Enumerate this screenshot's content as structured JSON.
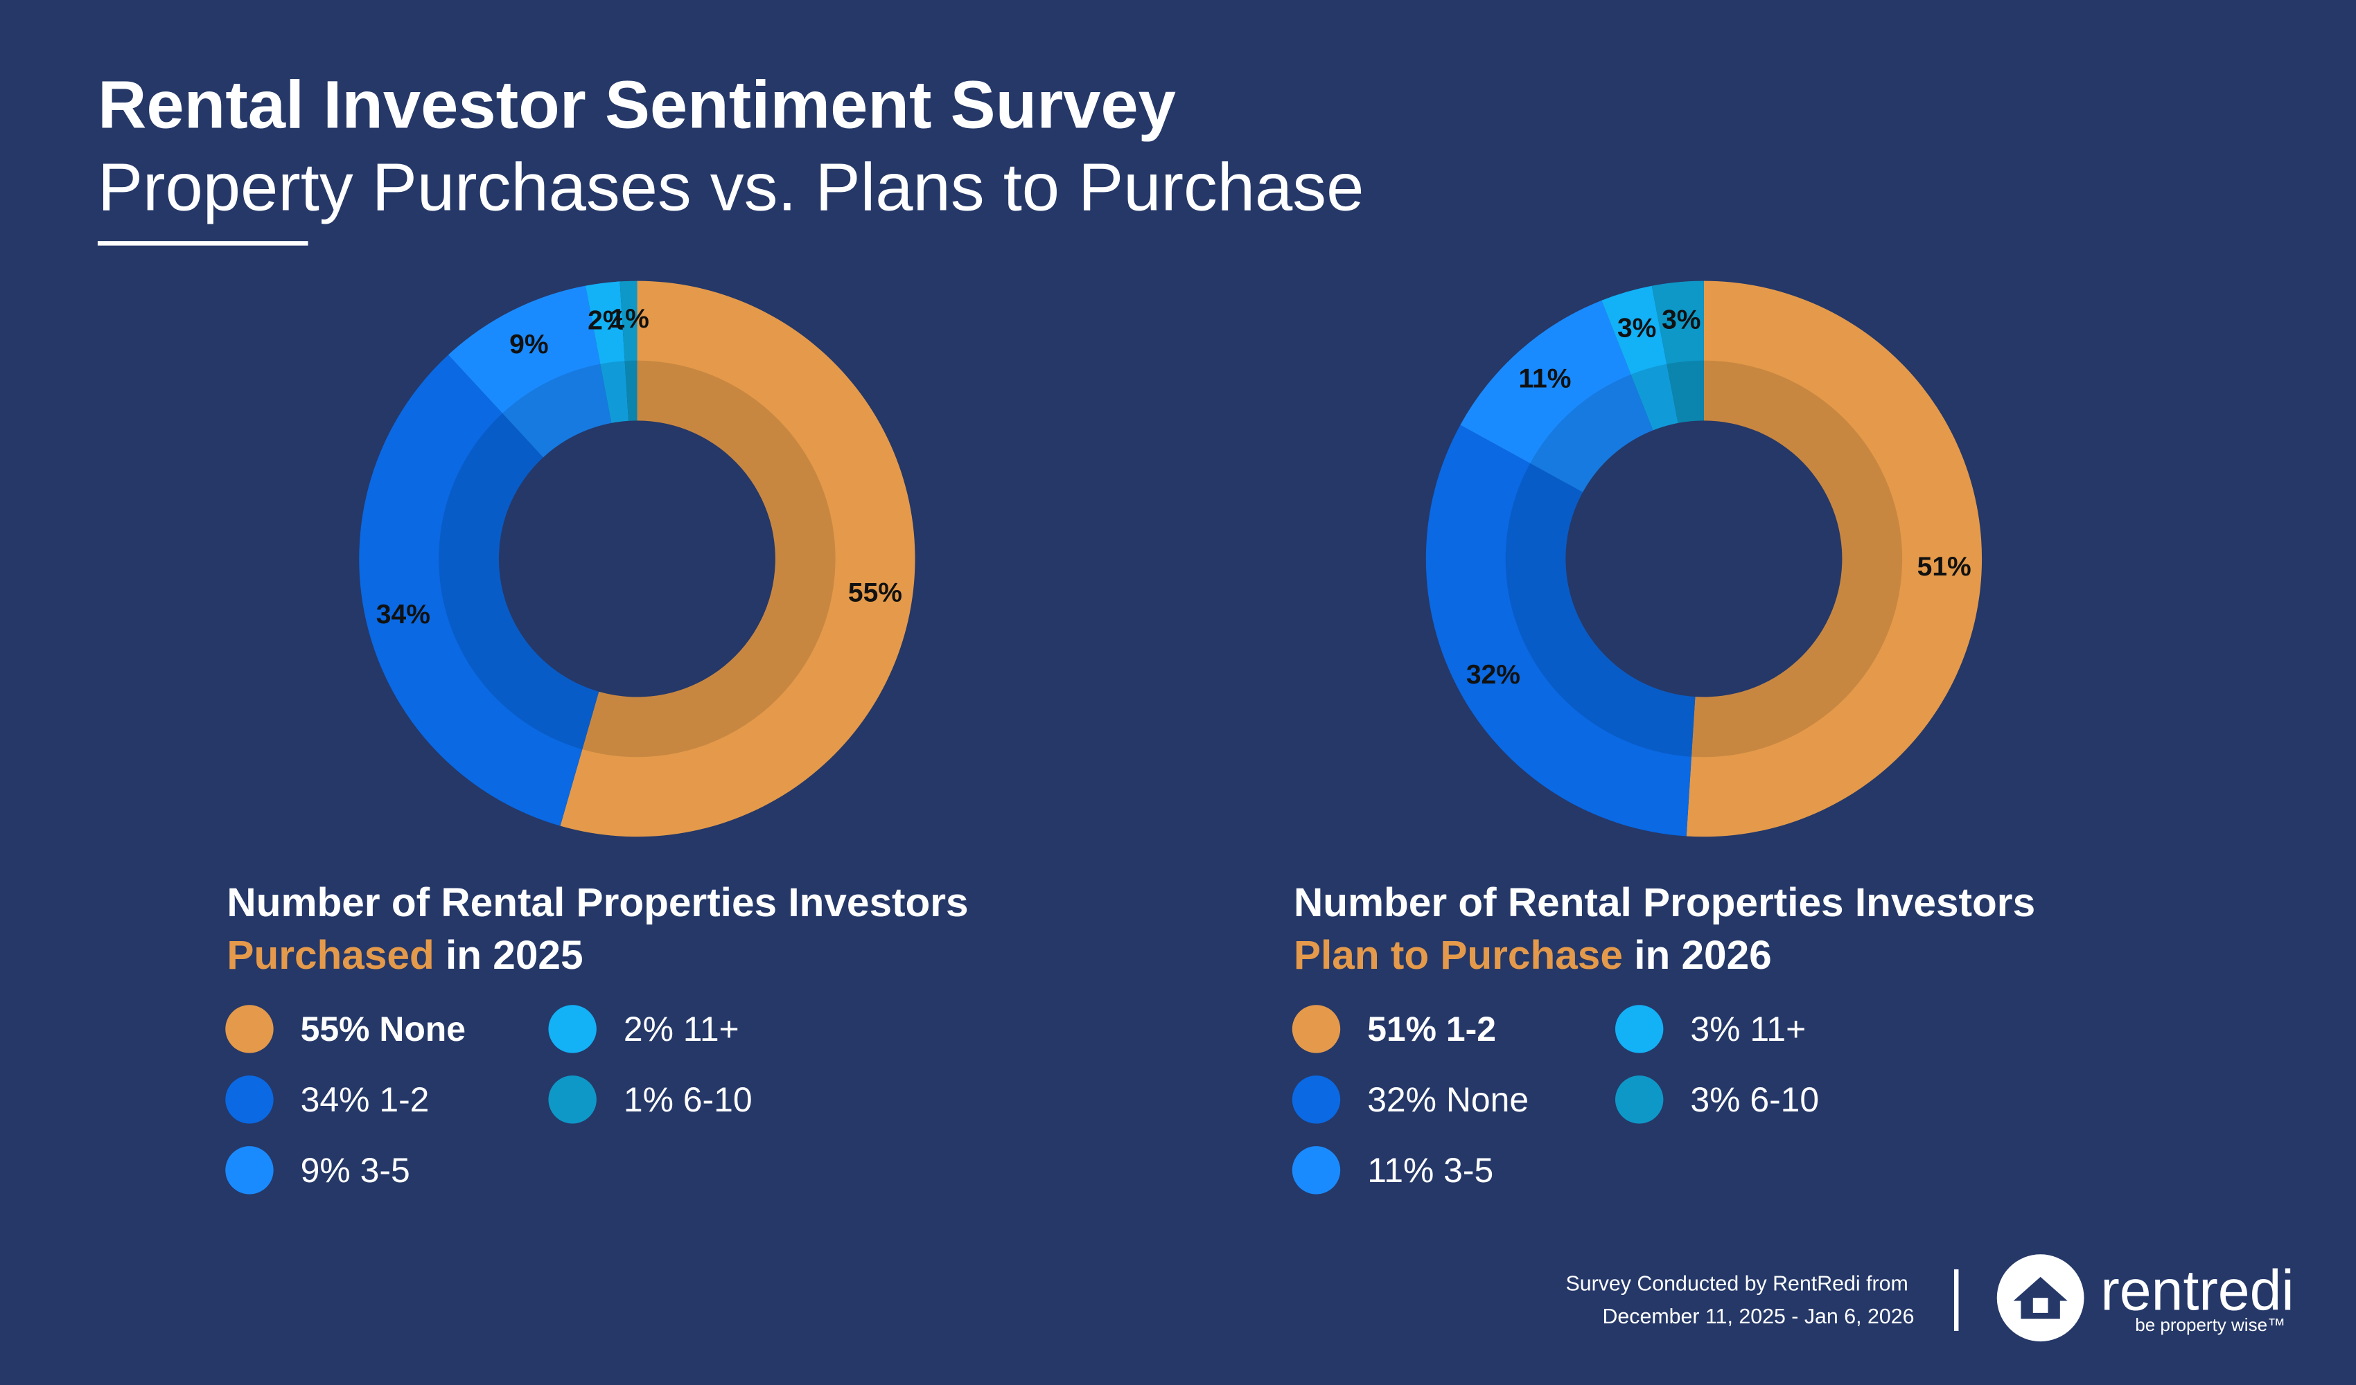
{
  "title": "Rental Investor Sentiment Survey",
  "subtitle": "Property Purchases vs. Plans to Purchase",
  "footer": [
    "Survey Conducted by RentRedi from",
    "December 11, 2025 - Jan 6, 2026"
  ],
  "logo": {
    "name": "rentredi",
    "tagline": "be property wise™"
  },
  "chart_data": [
    {
      "type": "pie",
      "title": "Number of Rental Properties Investors",
      "highlight": "Purchased",
      "title_suffix": "in 2025",
      "categories": [
        "None",
        "1-2",
        "3-5",
        "11+",
        "6-10"
      ],
      "values": [
        55,
        34,
        9,
        2,
        1
      ],
      "value_labels": [
        "55%",
        "34%",
        "9%",
        "2%",
        "1%"
      ],
      "colors": [
        "#e49a4a",
        "#0a69e3",
        "#1a8bff",
        "#13b1f6",
        "#0e98c7"
      ]
    },
    {
      "type": "pie",
      "title": "Number of Rental Properties Investors",
      "highlight": "Plan to Purchase",
      "title_suffix": "in 2026",
      "categories": [
        "1-2",
        "None",
        "3-5",
        "11+",
        "6-10"
      ],
      "values": [
        51,
        32,
        11,
        3,
        3
      ],
      "value_labels": [
        "51%",
        "32%",
        "11%",
        "3%",
        "3%"
      ],
      "colors": [
        "#e49a4a",
        "#0a69e3",
        "#1a8bff",
        "#13b1f6",
        "#0e98c7"
      ]
    }
  ]
}
